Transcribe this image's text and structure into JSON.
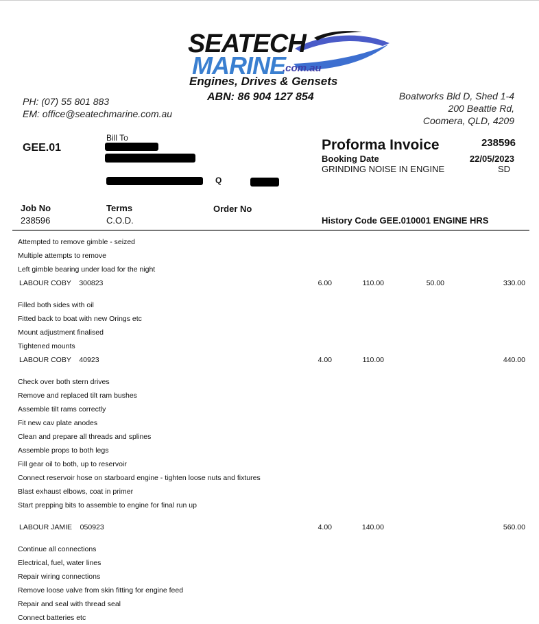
{
  "company": {
    "logo_line1": "SEATECH",
    "logo_line2": "MARINE",
    "logo_domain": ".com.au",
    "tagline": "Engines, Drives & Gensets",
    "abn": "ABN: 86 904 127 854",
    "phone": "PH: (07) 55 801 883",
    "email": "EM: office@seatechmarine.com.au",
    "address": [
      "Boatworks Bld D, Shed 1-4",
      "200 Beattie Rd,",
      "Coomera, QLD, 4209"
    ],
    "colors": {
      "logo_blue": "#3a7fd0",
      "logo_navy": "#3d3fa8"
    }
  },
  "header": {
    "account_code": "GEE.01",
    "bill_to_label": "Bill To",
    "state": "Q",
    "title": "Proforma Invoice",
    "invoice_number": "238596",
    "booking_date_label": "Booking Date",
    "booking_date": "22/05/2023",
    "description": "GRINDING NOISE IN ENGINE",
    "initials": "SD",
    "job_no_label": "Job No",
    "job_no": "238596",
    "terms_label": "Terms",
    "terms": "C.O.D.",
    "order_no_label": "Order No",
    "history": "History Code GEE.010001  ENGINE HRS"
  },
  "groups": [
    {
      "lines": [
        "Attempted to remove gimble - seized",
        "Multiple attempts to remove",
        "Left gimble bearing under load for the night"
      ],
      "labour": {
        "desc": "LABOUR COBY    300823",
        "qty": "6.00",
        "rate": "110.00",
        "extra": "50.00",
        "total": "330.00"
      }
    },
    {
      "lines": [
        "Filled both sides with oil",
        "Fitted back to boat with new Orings etc",
        "Mount adjustment finalised",
        "Tightened mounts"
      ],
      "labour": {
        "desc": "LABOUR COBY    40923",
        "qty": "4.00",
        "rate": "110.00",
        "extra": "",
        "total": "440.00"
      }
    },
    {
      "lines": [
        "Check over both stern drives",
        "Remove and replaced tilt ram bushes",
        "Assemble tilt rams correctly",
        "Fit new cav plate anodes",
        "Clean and prepare all threads and splines",
        "Assemble props to both legs",
        "Fill gear oil to both, up to reservoir",
        "Connect reservoir hose on starboard engine - tighten loose nuts and fixtures",
        "Blast exhaust elbows, coat in primer",
        "Start prepping bits to assemble to engine for final run up"
      ],
      "labour": {
        "desc": "LABOUR JAMIE    050923",
        "qty": "4.00",
        "rate": "140.00",
        "extra": "",
        "total": "560.00"
      }
    },
    {
      "lines": [
        "Continue all connections",
        "Electrical, fuel, water lines",
        "Repair wiring connections",
        "Remove loose valve from skin fitting for engine feed",
        "Repair and seal with thread seal",
        "Connect batteries etc"
      ]
    }
  ]
}
